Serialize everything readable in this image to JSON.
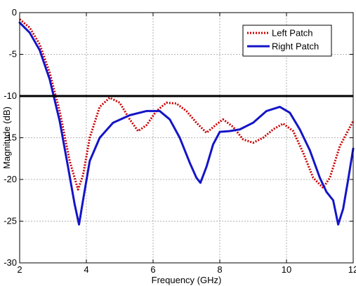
{
  "chart_data": {
    "type": "line",
    "title": "",
    "xlabel": "Frequency (GHz)",
    "ylabel": "Magnitude (dB)",
    "xlim": [
      2,
      12
    ],
    "ylim": [
      -30,
      0
    ],
    "xticks": [
      "2",
      "4",
      "6",
      "8",
      "10",
      "12"
    ],
    "yticks": [
      "0",
      "-5",
      "-10",
      "-15",
      "-20",
      "-25",
      "-30"
    ],
    "grid": true,
    "legend_position": "top-right",
    "reference_line": {
      "y": -10,
      "color": "#000000"
    },
    "series": [
      {
        "name": "Left Patch",
        "color": "#cc0000",
        "style": "dotted",
        "x": [
          2.0,
          2.3,
          2.6,
          2.9,
          3.2,
          3.5,
          3.75,
          3.9,
          4.1,
          4.4,
          4.7,
          5.0,
          5.3,
          5.55,
          5.8,
          6.1,
          6.4,
          6.7,
          7.0,
          7.3,
          7.6,
          7.9,
          8.1,
          8.4,
          8.7,
          9.0,
          9.3,
          9.6,
          9.9,
          10.2,
          10.5,
          10.8,
          11.1,
          11.3,
          11.6,
          12.0
        ],
        "y": [
          -0.8,
          -1.8,
          -3.8,
          -7.2,
          -11.8,
          -17.8,
          -21.2,
          -19.5,
          -15.0,
          -11.3,
          -10.2,
          -10.8,
          -12.8,
          -14.2,
          -13.5,
          -11.8,
          -10.8,
          -10.9,
          -11.8,
          -13.2,
          -14.4,
          -13.4,
          -12.8,
          -13.7,
          -15.2,
          -15.6,
          -15.0,
          -14.0,
          -13.3,
          -14.2,
          -16.8,
          -19.8,
          -21.0,
          -19.8,
          -16.0,
          -13.0
        ]
      },
      {
        "name": "Right Patch",
        "color": "#1414c8",
        "style": "solid",
        "x": [
          2.0,
          2.3,
          2.6,
          2.9,
          3.2,
          3.45,
          3.65,
          3.78,
          3.9,
          4.1,
          4.4,
          4.8,
          5.3,
          5.8,
          6.2,
          6.5,
          6.8,
          7.1,
          7.3,
          7.42,
          7.6,
          7.8,
          8.0,
          8.3,
          8.6,
          9.0,
          9.4,
          9.8,
          10.1,
          10.4,
          10.7,
          11.0,
          11.2,
          11.4,
          11.55,
          11.7,
          11.85,
          12.0
        ],
        "y": [
          -1.2,
          -2.4,
          -4.5,
          -8.0,
          -13.0,
          -18.5,
          -23.0,
          -25.4,
          -22.5,
          -17.8,
          -15.0,
          -13.2,
          -12.3,
          -11.8,
          -11.8,
          -12.8,
          -15.0,
          -18.0,
          -19.8,
          -20.4,
          -18.5,
          -15.8,
          -14.3,
          -14.2,
          -14.0,
          -13.2,
          -11.8,
          -11.3,
          -12.0,
          -14.0,
          -16.5,
          -19.8,
          -21.5,
          -22.5,
          -25.4,
          -23.5,
          -20.0,
          -16.3
        ]
      }
    ]
  }
}
